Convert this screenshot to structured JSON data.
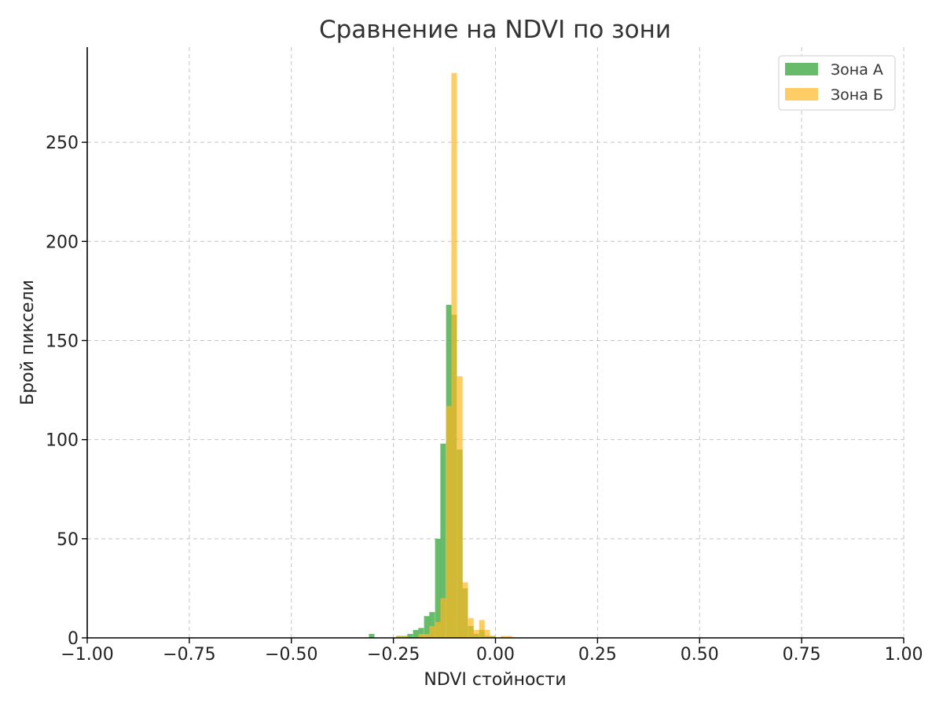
{
  "chart_data": {
    "type": "bar",
    "title": "Сравнение на NDVI по зони",
    "xlabel": "NDVI стойности",
    "ylabel": "Брой пиксели",
    "xlim": [
      -1.0,
      1.0
    ],
    "ylim": [
      0,
      298
    ],
    "xticks": [
      -1.0,
      -0.75,
      -0.5,
      -0.25,
      0.0,
      0.25,
      0.5,
      0.75,
      1.0
    ],
    "xtick_labels": [
      "−1.00",
      "−0.75",
      "−0.50",
      "−0.25",
      "0.00",
      "0.25",
      "0.50",
      "0.75",
      "1.00"
    ],
    "yticks": [
      0,
      50,
      100,
      150,
      200,
      250
    ],
    "ytick_labels": [
      "0",
      "50",
      "100",
      "150",
      "200",
      "250"
    ],
    "grid": true,
    "legend_position": "top-right",
    "bin_width": 0.0135,
    "series": [
      {
        "name": "Зона А",
        "color": "#4caf50",
        "opacity": 0.85,
        "bins": [
          {
            "x": -0.31,
            "count": 2
          },
          {
            "x": -0.297,
            "count": 0
          },
          {
            "x": -0.283,
            "count": 0
          },
          {
            "x": -0.27,
            "count": 0
          },
          {
            "x": -0.256,
            "count": 0
          },
          {
            "x": -0.243,
            "count": 1
          },
          {
            "x": -0.229,
            "count": 1
          },
          {
            "x": -0.216,
            "count": 2
          },
          {
            "x": -0.202,
            "count": 4
          },
          {
            "x": -0.189,
            "count": 5
          },
          {
            "x": -0.175,
            "count": 11
          },
          {
            "x": -0.162,
            "count": 13
          },
          {
            "x": -0.148,
            "count": 50
          },
          {
            "x": -0.135,
            "count": 98
          },
          {
            "x": -0.121,
            "count": 168
          },
          {
            "x": -0.108,
            "count": 163
          },
          {
            "x": -0.094,
            "count": 95
          },
          {
            "x": -0.081,
            "count": 25
          },
          {
            "x": -0.067,
            "count": 6
          },
          {
            "x": -0.054,
            "count": 2
          },
          {
            "x": -0.04,
            "count": 4
          },
          {
            "x": -0.027,
            "count": 1
          },
          {
            "x": -0.013,
            "count": 1
          }
        ]
      },
      {
        "name": "Зона Б",
        "color": "#ffb824",
        "opacity": 0.7,
        "bins": [
          {
            "x": -0.243,
            "count": 1
          },
          {
            "x": -0.229,
            "count": 1
          },
          {
            "x": -0.216,
            "count": 0
          },
          {
            "x": -0.202,
            "count": 0
          },
          {
            "x": -0.189,
            "count": 2
          },
          {
            "x": -0.175,
            "count": 2
          },
          {
            "x": -0.162,
            "count": 6
          },
          {
            "x": -0.148,
            "count": 8
          },
          {
            "x": -0.135,
            "count": 20
          },
          {
            "x": -0.121,
            "count": 117
          },
          {
            "x": -0.108,
            "count": 285
          },
          {
            "x": -0.094,
            "count": 132
          },
          {
            "x": -0.081,
            "count": 28
          },
          {
            "x": -0.067,
            "count": 10
          },
          {
            "x": -0.054,
            "count": 4
          },
          {
            "x": -0.04,
            "count": 9
          },
          {
            "x": -0.027,
            "count": 4
          },
          {
            "x": -0.013,
            "count": 1
          },
          {
            "x": 0.0,
            "count": 0
          },
          {
            "x": 0.013,
            "count": 1
          },
          {
            "x": 0.027,
            "count": 1
          },
          {
            "x": 0.04,
            "count": 0
          }
        ]
      }
    ]
  }
}
